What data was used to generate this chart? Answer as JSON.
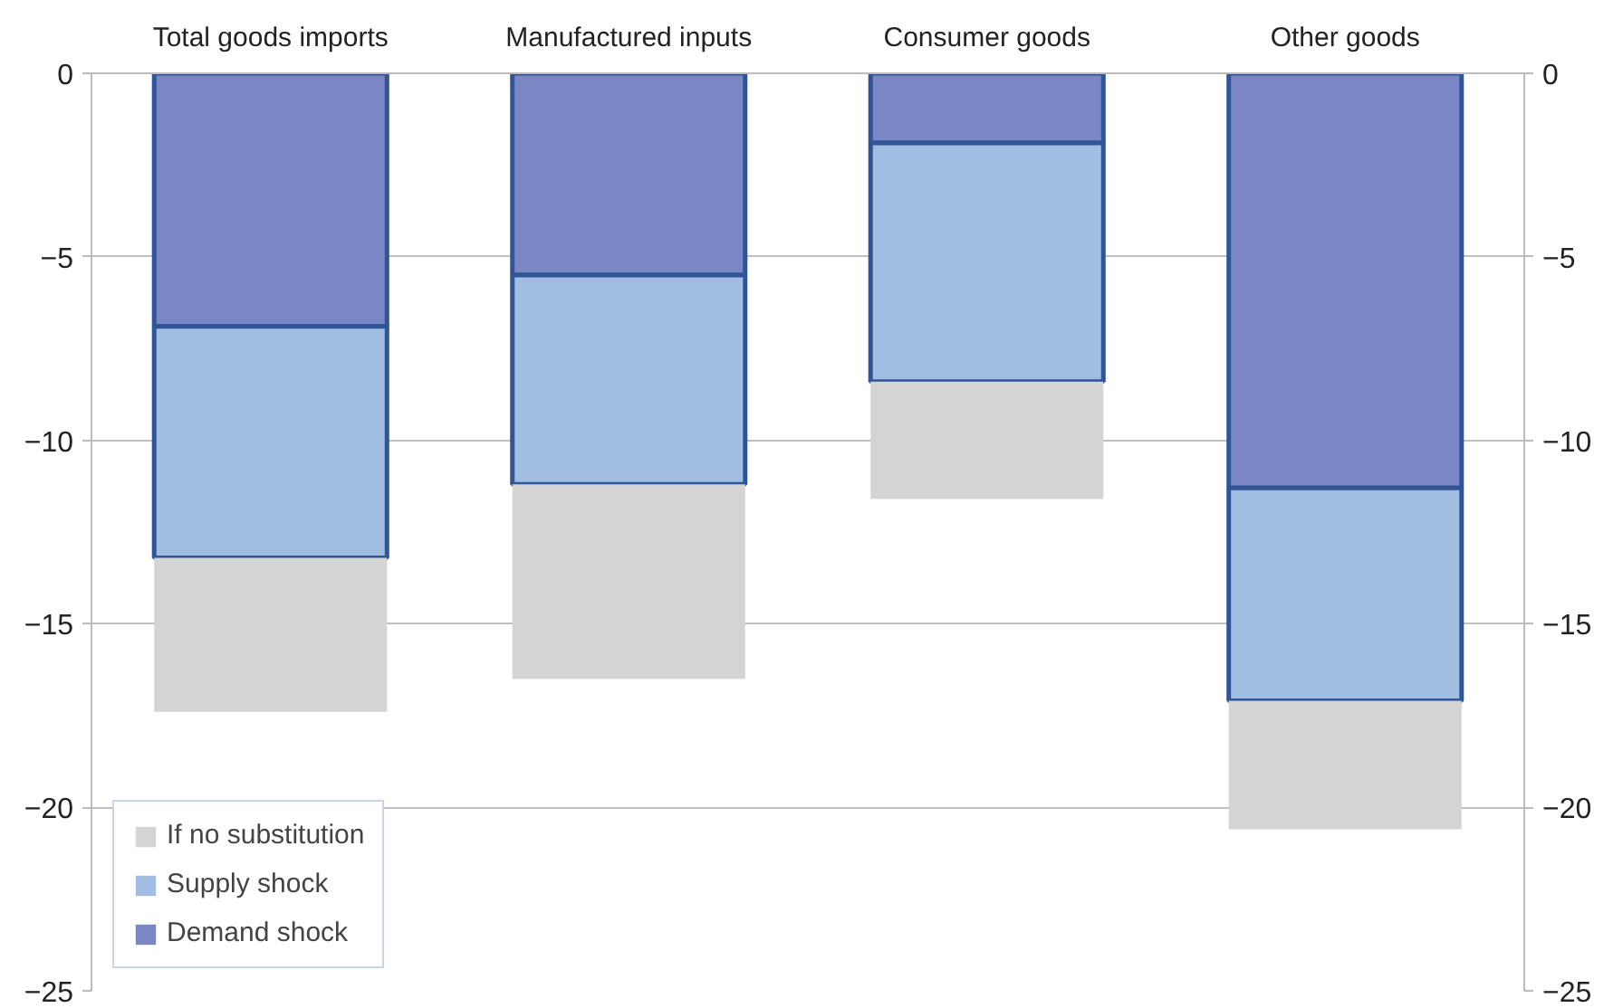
{
  "chart_data": {
    "type": "bar",
    "stacked": true,
    "categories": [
      "Total goods imports",
      "Manufactured inputs",
      "Consumer goods",
      "Other goods"
    ],
    "series": [
      {
        "name": "Demand shock",
        "color": "#7b87c4",
        "values": [
          -6.9,
          -5.5,
          -1.9,
          -11.3
        ]
      },
      {
        "name": "Supply shock",
        "color": "#a1bde2",
        "values": [
          -6.3,
          -5.7,
          -6.5,
          -5.8
        ]
      },
      {
        "name": "If no substitution",
        "color": "#d4d4d4",
        "values": [
          -4.2,
          -5.3,
          -3.2,
          -3.5
        ]
      }
    ],
    "ylim": [
      -25,
      0
    ],
    "yticks": [
      0,
      -5,
      -10,
      -15,
      -20,
      -25
    ],
    "y2lim": [
      -25,
      0
    ],
    "y2ticks": [
      0,
      -5,
      -10,
      -15,
      -20,
      -25
    ],
    "grid": "y",
    "legend": "bottom left"
  }
}
